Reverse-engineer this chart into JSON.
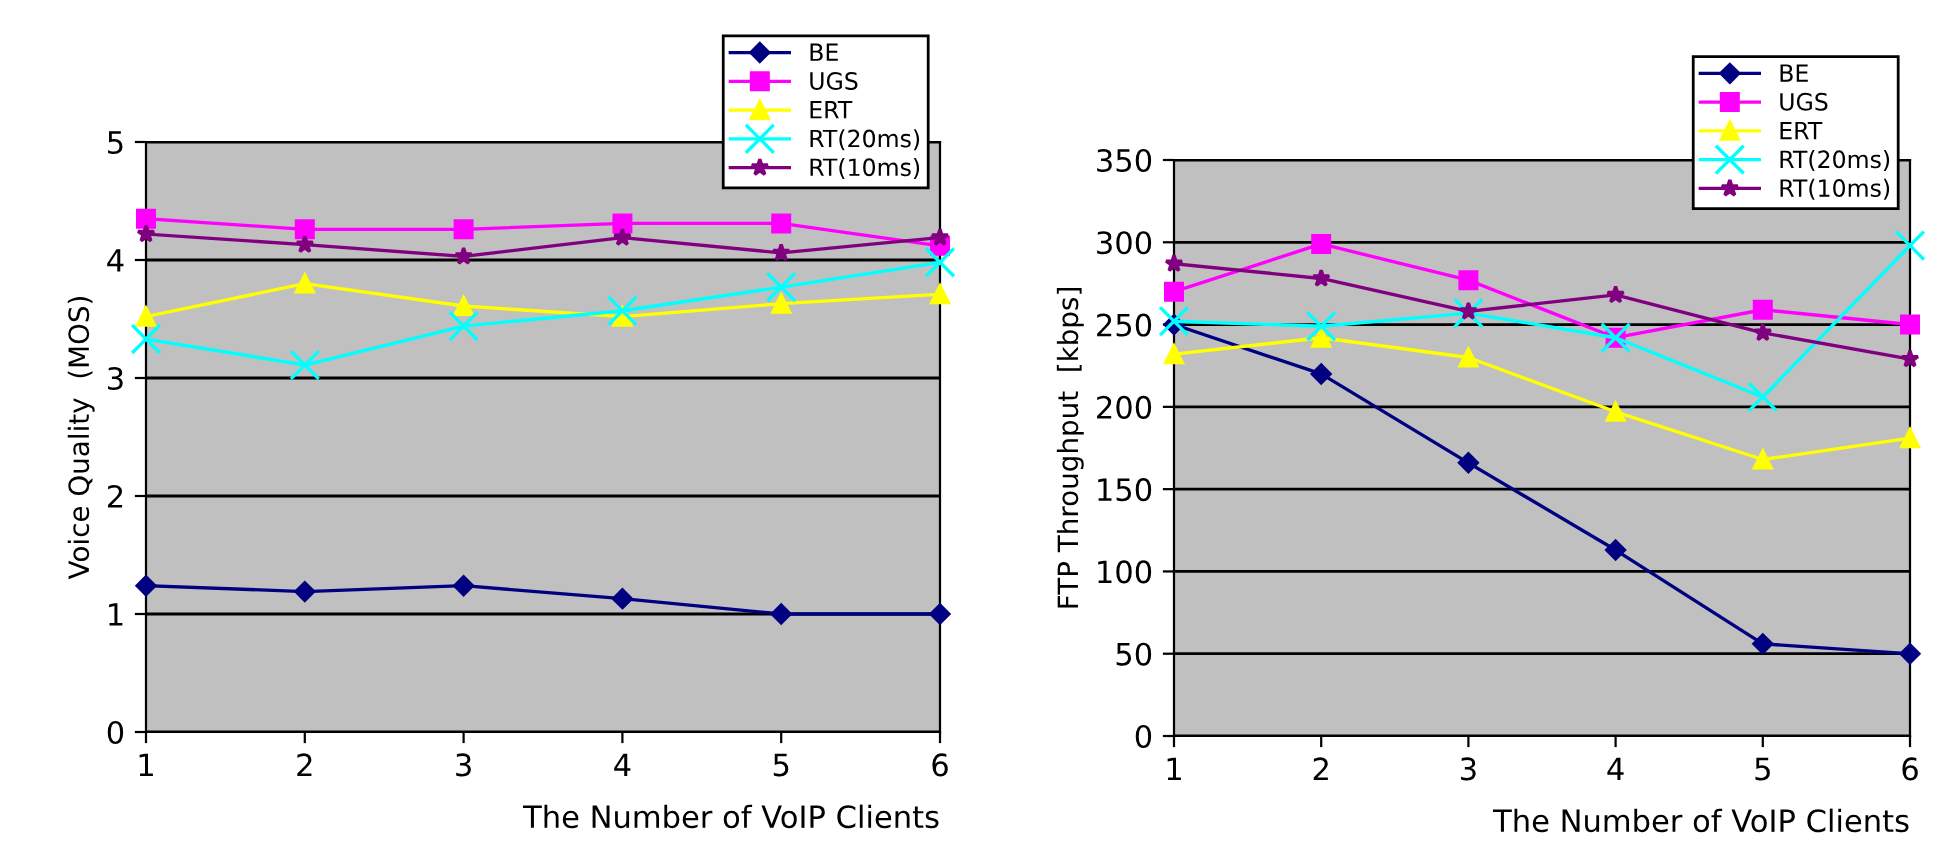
{
  "chart_data": [
    {
      "type": "line",
      "xlabel": "The Number of VoIP Clients",
      "ylabel": "Voice Quality  (MOS)",
      "x": [
        1,
        2,
        3,
        4,
        5,
        6
      ],
      "xlim": [
        1,
        6
      ],
      "xticks": [
        1,
        2,
        3,
        4,
        5,
        6
      ],
      "ylim": [
        0,
        5
      ],
      "yticks": [
        0,
        1,
        2,
        3,
        4,
        5
      ],
      "grid": "y",
      "legend": "top right",
      "series": [
        {
          "name": "BE",
          "color": "#000080",
          "marker": "diamond",
          "values": [
            1.24,
            1.19,
            1.24,
            1.13,
            1.0,
            1.0
          ]
        },
        {
          "name": "UGS",
          "color": "#ff00ff",
          "marker": "square",
          "values": [
            4.35,
            4.26,
            4.26,
            4.31,
            4.31,
            4.12
          ]
        },
        {
          "name": "ERT",
          "color": "#ffff00",
          "marker": "triangle",
          "values": [
            3.52,
            3.8,
            3.61,
            3.52,
            3.63,
            3.71
          ]
        },
        {
          "name": "RT(20ms)",
          "color": "#00ffff",
          "marker": "cross",
          "values": [
            3.33,
            3.11,
            3.44,
            3.57,
            3.77,
            3.98
          ]
        },
        {
          "name": "RT(10ms)",
          "color": "#800080",
          "marker": "star",
          "values": [
            4.22,
            4.13,
            4.03,
            4.19,
            4.06,
            4.19
          ]
        }
      ]
    },
    {
      "type": "line",
      "xlabel": "The Number of VoIP Clients",
      "ylabel": "FTP Throughput  [kbps]",
      "x": [
        1,
        2,
        3,
        4,
        5,
        6
      ],
      "xlim": [
        1,
        6
      ],
      "xticks": [
        1,
        2,
        3,
        4,
        5,
        6
      ],
      "ylim": [
        0,
        350
      ],
      "yticks": [
        0,
        50,
        100,
        150,
        200,
        250,
        300,
        350
      ],
      "grid": "y",
      "legend": "top right",
      "series": [
        {
          "name": "BE",
          "color": "#000080",
          "marker": "diamond",
          "values": [
            250,
            220,
            166,
            113,
            56,
            50
          ]
        },
        {
          "name": "UGS",
          "color": "#ff00ff",
          "marker": "square",
          "values": [
            270,
            299,
            277,
            242,
            259,
            250
          ]
        },
        {
          "name": "ERT",
          "color": "#ffff00",
          "marker": "triangle",
          "values": [
            232,
            242,
            230,
            197,
            168,
            181
          ]
        },
        {
          "name": "RT(20ms)",
          "color": "#00ffff",
          "marker": "cross",
          "values": [
            252,
            249,
            257,
            242,
            206,
            298
          ]
        },
        {
          "name": "RT(10ms)",
          "color": "#800080",
          "marker": "star",
          "values": [
            287,
            278,
            258,
            268,
            245,
            229
          ]
        }
      ]
    }
  ]
}
